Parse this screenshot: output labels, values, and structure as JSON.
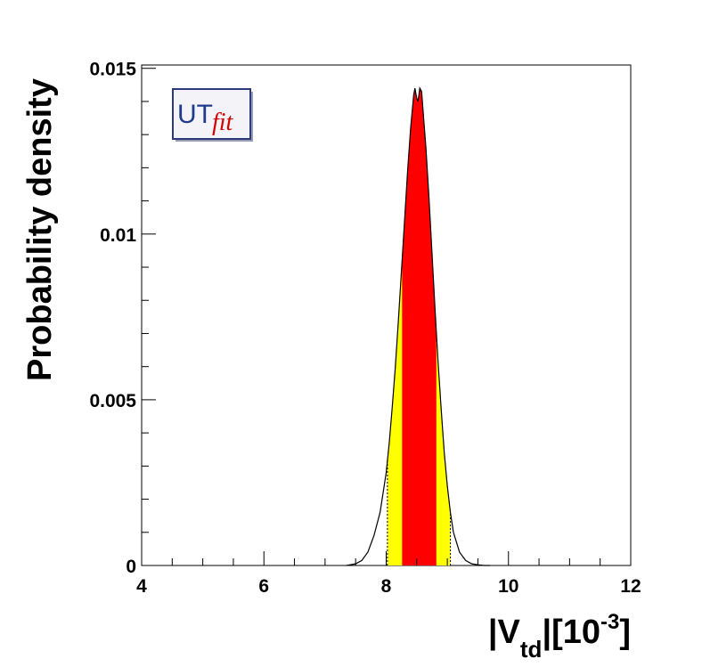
{
  "chart_data": {
    "type": "area",
    "title": "",
    "xlabel_parts": {
      "open": "|V",
      "sub": "td",
      "mid": "|[10",
      "sup": "-3",
      "close": "]"
    },
    "ylabel": "Probability density",
    "xlim": [
      4,
      12
    ],
    "ylim": [
      0,
      0.0151
    ],
    "x_ticks": [
      4,
      6,
      8,
      10,
      12
    ],
    "x_tick_labels": [
      "4",
      "6",
      "8",
      "10",
      "12"
    ],
    "y_ticks": [
      0,
      0.005,
      0.01,
      0.015
    ],
    "y_tick_labels": [
      "0",
      "0.005",
      "0.01",
      "0.015"
    ],
    "grid": false,
    "colors": {
      "frame": "#000000",
      "inner_region": "#ff0000",
      "outer_region": "#ffff00",
      "curve": "#000000"
    },
    "regions": {
      "inner_68": [
        8.26,
        8.82
      ],
      "outer_95": [
        8.02,
        9.05
      ]
    },
    "curve": {
      "x": [
        7.35,
        7.5,
        7.6,
        7.7,
        7.8,
        7.9,
        8.0,
        8.05,
        8.1,
        8.15,
        8.2,
        8.25,
        8.3,
        8.35,
        8.4,
        8.45,
        8.47,
        8.5,
        8.52,
        8.55,
        8.58,
        8.6,
        8.65,
        8.7,
        8.75,
        8.8,
        8.85,
        8.9,
        8.95,
        9.0,
        9.05,
        9.1,
        9.2,
        9.3,
        9.4,
        9.5,
        9.6,
        9.7
      ],
      "y": [
        0.0,
        5e-05,
        0.00015,
        0.0004,
        0.0009,
        0.0016,
        0.0028,
        0.0037,
        0.0048,
        0.006,
        0.0074,
        0.0089,
        0.0104,
        0.0119,
        0.0132,
        0.0142,
        0.0144,
        0.0141,
        0.014,
        0.0144,
        0.0143,
        0.0138,
        0.0126,
        0.0111,
        0.0094,
        0.0077,
        0.0061,
        0.0047,
        0.0034,
        0.0024,
        0.0016,
        0.001,
        0.0004,
        0.00015,
        5e-05,
        2e-05,
        0.0,
        0.0
      ]
    }
  },
  "logo": {
    "text_main": "UT",
    "text_script": "fit"
  }
}
